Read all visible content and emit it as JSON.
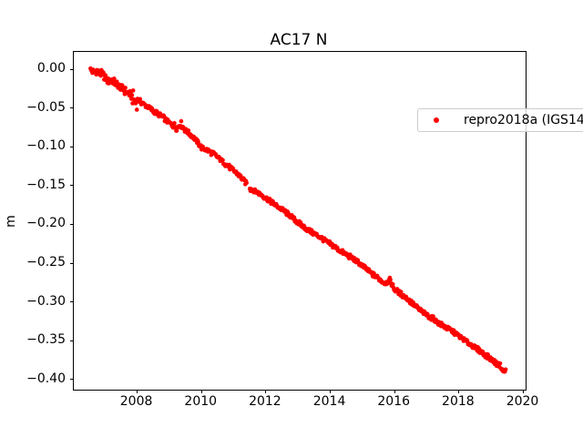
{
  "colors": {
    "background": "#ffffff",
    "text": "#000000",
    "series_red": "#ff0000",
    "legend_border": "#cccccc",
    "axis": "#000000"
  },
  "chart_data": {
    "type": "scatter",
    "title": "AC17 N",
    "xlabel": "",
    "ylabel": "m",
    "grid": false,
    "xlim": [
      2006.03,
      2020.07
    ],
    "ylim": [
      -0.4131,
      0.0223
    ],
    "x_ticks": [
      2008,
      2010,
      2012,
      2014,
      2016,
      2018,
      2020
    ],
    "x_tick_labels": [
      "2008",
      "2010",
      "2012",
      "2014",
      "2016",
      "2018",
      "2020"
    ],
    "y_ticks": [
      0.0,
      -0.05,
      -0.1,
      -0.15,
      -0.2,
      -0.25,
      -0.3,
      -0.35,
      -0.4
    ],
    "y_tick_labels": [
      "0.00",
      "−0.05",
      "−0.10",
      "−0.15",
      "−0.20",
      "−0.25",
      "−0.30",
      "−0.35",
      "−0.40"
    ],
    "legend": {
      "position": "upper right",
      "entries": [
        {
          "label": "repro2018a (IGS14)",
          "color": "#ff0000",
          "marker": "dot"
        }
      ]
    },
    "series": [
      {
        "name": "repro2018a (IGS14)",
        "color": "#ff0000",
        "marker": "dot",
        "marker_radius_px": 2.3,
        "note": "dense daily position scatter; points below are band-center anchors sampled from the figure",
        "trend_m_per_yr": -0.0303,
        "gaps": [
          [
            2011.41,
            2011.5
          ]
        ],
        "points": [
          [
            2006.55,
            -0.001
          ],
          [
            2006.65,
            -0.004
          ],
          [
            2006.75,
            -0.002
          ],
          [
            2006.85,
            -0.006
          ],
          [
            2006.95,
            -0.007
          ],
          [
            2007.1,
            -0.016
          ],
          [
            2007.2,
            -0.013
          ],
          [
            2007.35,
            -0.019
          ],
          [
            2007.5,
            -0.024
          ],
          [
            2007.65,
            -0.029
          ],
          [
            2007.8,
            -0.033
          ],
          [
            2007.95,
            -0.043
          ],
          [
            2008.05,
            -0.04
          ],
          [
            2008.2,
            -0.045
          ],
          [
            2008.35,
            -0.049
          ],
          [
            2008.5,
            -0.054
          ],
          [
            2008.65,
            -0.058
          ],
          [
            2008.8,
            -0.062
          ],
          [
            2008.95,
            -0.068
          ],
          [
            2009.1,
            -0.072
          ],
          [
            2009.25,
            -0.075
          ],
          [
            2009.35,
            -0.07
          ],
          [
            2009.5,
            -0.079
          ],
          [
            2009.65,
            -0.084
          ],
          [
            2009.8,
            -0.09
          ],
          [
            2010.0,
            -0.101
          ],
          [
            2010.2,
            -0.105
          ],
          [
            2010.4,
            -0.11
          ],
          [
            2010.6,
            -0.117
          ],
          [
            2010.8,
            -0.124
          ],
          [
            2011.0,
            -0.131
          ],
          [
            2011.15,
            -0.136
          ],
          [
            2011.3,
            -0.143
          ],
          [
            2011.4,
            -0.147
          ],
          [
            2011.52,
            -0.154
          ],
          [
            2011.7,
            -0.158
          ],
          [
            2011.9,
            -0.163
          ],
          [
            2012.1,
            -0.169
          ],
          [
            2012.3,
            -0.175
          ],
          [
            2012.5,
            -0.181
          ],
          [
            2012.7,
            -0.187
          ],
          [
            2012.9,
            -0.194
          ],
          [
            2013.1,
            -0.201
          ],
          [
            2013.3,
            -0.207
          ],
          [
            2013.5,
            -0.212
          ],
          [
            2013.7,
            -0.217
          ],
          [
            2013.9,
            -0.223
          ],
          [
            2014.1,
            -0.228
          ],
          [
            2014.3,
            -0.234
          ],
          [
            2014.5,
            -0.239
          ],
          [
            2014.7,
            -0.244
          ],
          [
            2014.9,
            -0.25
          ],
          [
            2015.1,
            -0.257
          ],
          [
            2015.3,
            -0.264
          ],
          [
            2015.5,
            -0.27
          ],
          [
            2015.7,
            -0.276
          ],
          [
            2015.85,
            -0.272
          ],
          [
            2016.0,
            -0.284
          ],
          [
            2016.2,
            -0.29
          ],
          [
            2016.4,
            -0.296
          ],
          [
            2016.6,
            -0.304
          ],
          [
            2016.8,
            -0.311
          ],
          [
            2017.0,
            -0.317
          ],
          [
            2017.2,
            -0.322
          ],
          [
            2017.4,
            -0.328
          ],
          [
            2017.6,
            -0.333
          ],
          [
            2017.8,
            -0.338
          ],
          [
            2018.0,
            -0.344
          ],
          [
            2018.2,
            -0.35
          ],
          [
            2018.4,
            -0.356
          ],
          [
            2018.6,
            -0.362
          ],
          [
            2018.8,
            -0.368
          ],
          [
            2019.0,
            -0.374
          ],
          [
            2019.15,
            -0.379
          ],
          [
            2019.3,
            -0.383
          ],
          [
            2019.38,
            -0.391
          ],
          [
            2019.45,
            -0.387
          ]
        ]
      }
    ]
  }
}
